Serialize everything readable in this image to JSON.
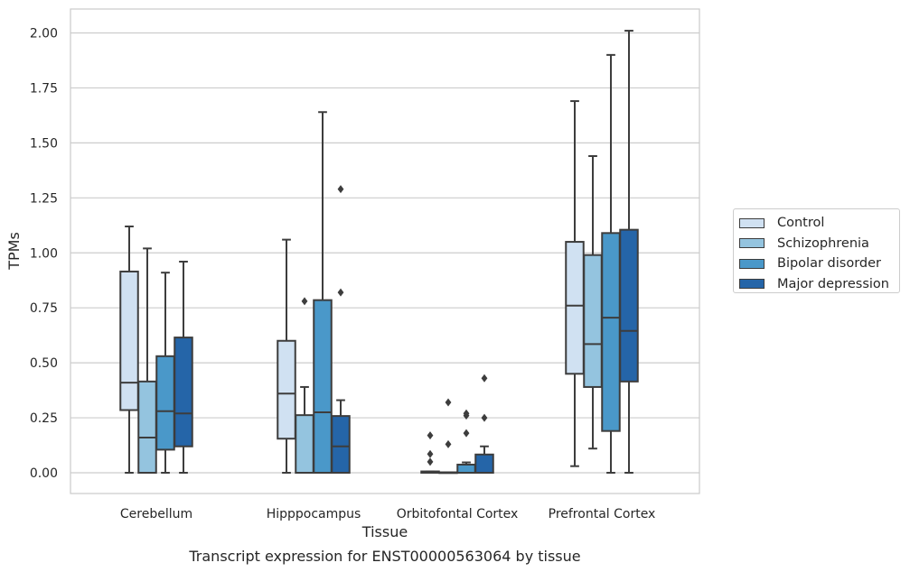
{
  "chart_data": {
    "type": "box",
    "title": "Transcript expression for ENST00000563064 by tissue",
    "xlabel": "Tissue",
    "ylabel": "TPMs",
    "ylim": [
      -0.1,
      2.12
    ],
    "yticks": [
      "0.00",
      "0.25",
      "0.50",
      "0.75",
      "1.00",
      "1.25",
      "1.50",
      "1.75",
      "2.00"
    ],
    "ytick_values": [
      0,
      0.25,
      0.5,
      0.75,
      1.0,
      1.25,
      1.5,
      1.75,
      2.0
    ],
    "grid": true,
    "legend_position": "right",
    "categories": [
      "Cerebellum",
      "Hipppocampus",
      "Orbitofontal Cortex",
      "Prefrontal Cortex"
    ],
    "series": [
      {
        "name": "Control",
        "color": "#d0e1f2",
        "boxes": [
          {
            "whislo": 0.0,
            "q1": 0.285,
            "med": 0.41,
            "q3": 0.915,
            "whishi": 1.12,
            "fliers": []
          },
          {
            "whislo": 0.0,
            "q1": 0.155,
            "med": 0.36,
            "q3": 0.6,
            "whishi": 1.06,
            "fliers": []
          },
          {
            "whislo": 0.0,
            "q1": 0.0,
            "med": 0.0,
            "q3": 0.006,
            "whishi": 0.006,
            "fliers": [
              0.05,
              0.085,
              0.17
            ]
          },
          {
            "whislo": 0.03,
            "q1": 0.45,
            "med": 0.76,
            "q3": 1.05,
            "whishi": 1.69,
            "fliers": []
          }
        ]
      },
      {
        "name": "Schizophrenia",
        "color": "#94c4df",
        "boxes": [
          {
            "whislo": 0.0,
            "q1": 0.0,
            "med": 0.16,
            "q3": 0.415,
            "whishi": 1.02,
            "fliers": []
          },
          {
            "whislo": 0.0,
            "q1": 0.0,
            "med": 0.0,
            "q3": 0.262,
            "whishi": 0.39,
            "fliers": [
              0.78
            ]
          },
          {
            "whislo": 0.0,
            "q1": 0.0,
            "med": 0.0,
            "q3": 0.002,
            "whishi": 0.002,
            "fliers": [
              0.13,
              0.32
            ]
          },
          {
            "whislo": 0.11,
            "q1": 0.39,
            "med": 0.585,
            "q3": 0.99,
            "whishi": 1.44,
            "fliers": []
          }
        ]
      },
      {
        "name": "Bipolar disorder",
        "color": "#4a98c9",
        "boxes": [
          {
            "whislo": 0.0,
            "q1": 0.105,
            "med": 0.28,
            "q3": 0.53,
            "whishi": 0.91,
            "fliers": []
          },
          {
            "whislo": 0.0,
            "q1": 0.0,
            "med": 0.275,
            "q3": 0.785,
            "whishi": 1.64,
            "fliers": []
          },
          {
            "whislo": 0.0,
            "q1": 0.0,
            "med": 0.0,
            "q3": 0.037,
            "whishi": 0.047,
            "fliers": [
              0.18,
              0.26,
              0.27
            ]
          },
          {
            "whislo": 0.0,
            "q1": 0.19,
            "med": 0.705,
            "q3": 1.09,
            "whishi": 1.9,
            "fliers": []
          }
        ]
      },
      {
        "name": "Major depression",
        "color": "#2565a8",
        "boxes": [
          {
            "whislo": 0.0,
            "q1": 0.12,
            "med": 0.27,
            "q3": 0.615,
            "whishi": 0.96,
            "fliers": []
          },
          {
            "whislo": 0.0,
            "q1": 0.0,
            "med": 0.12,
            "q3": 0.258,
            "whishi": 0.33,
            "fliers": [
              0.82,
              1.29
            ]
          },
          {
            "whislo": 0.0,
            "q1": 0.0,
            "med": 0.0,
            "q3": 0.083,
            "whishi": 0.12,
            "fliers": [
              0.25,
              0.43
            ]
          },
          {
            "whislo": 0.0,
            "q1": 0.415,
            "med": 0.645,
            "q3": 1.105,
            "whishi": 2.01,
            "fliers": []
          }
        ]
      }
    ]
  }
}
